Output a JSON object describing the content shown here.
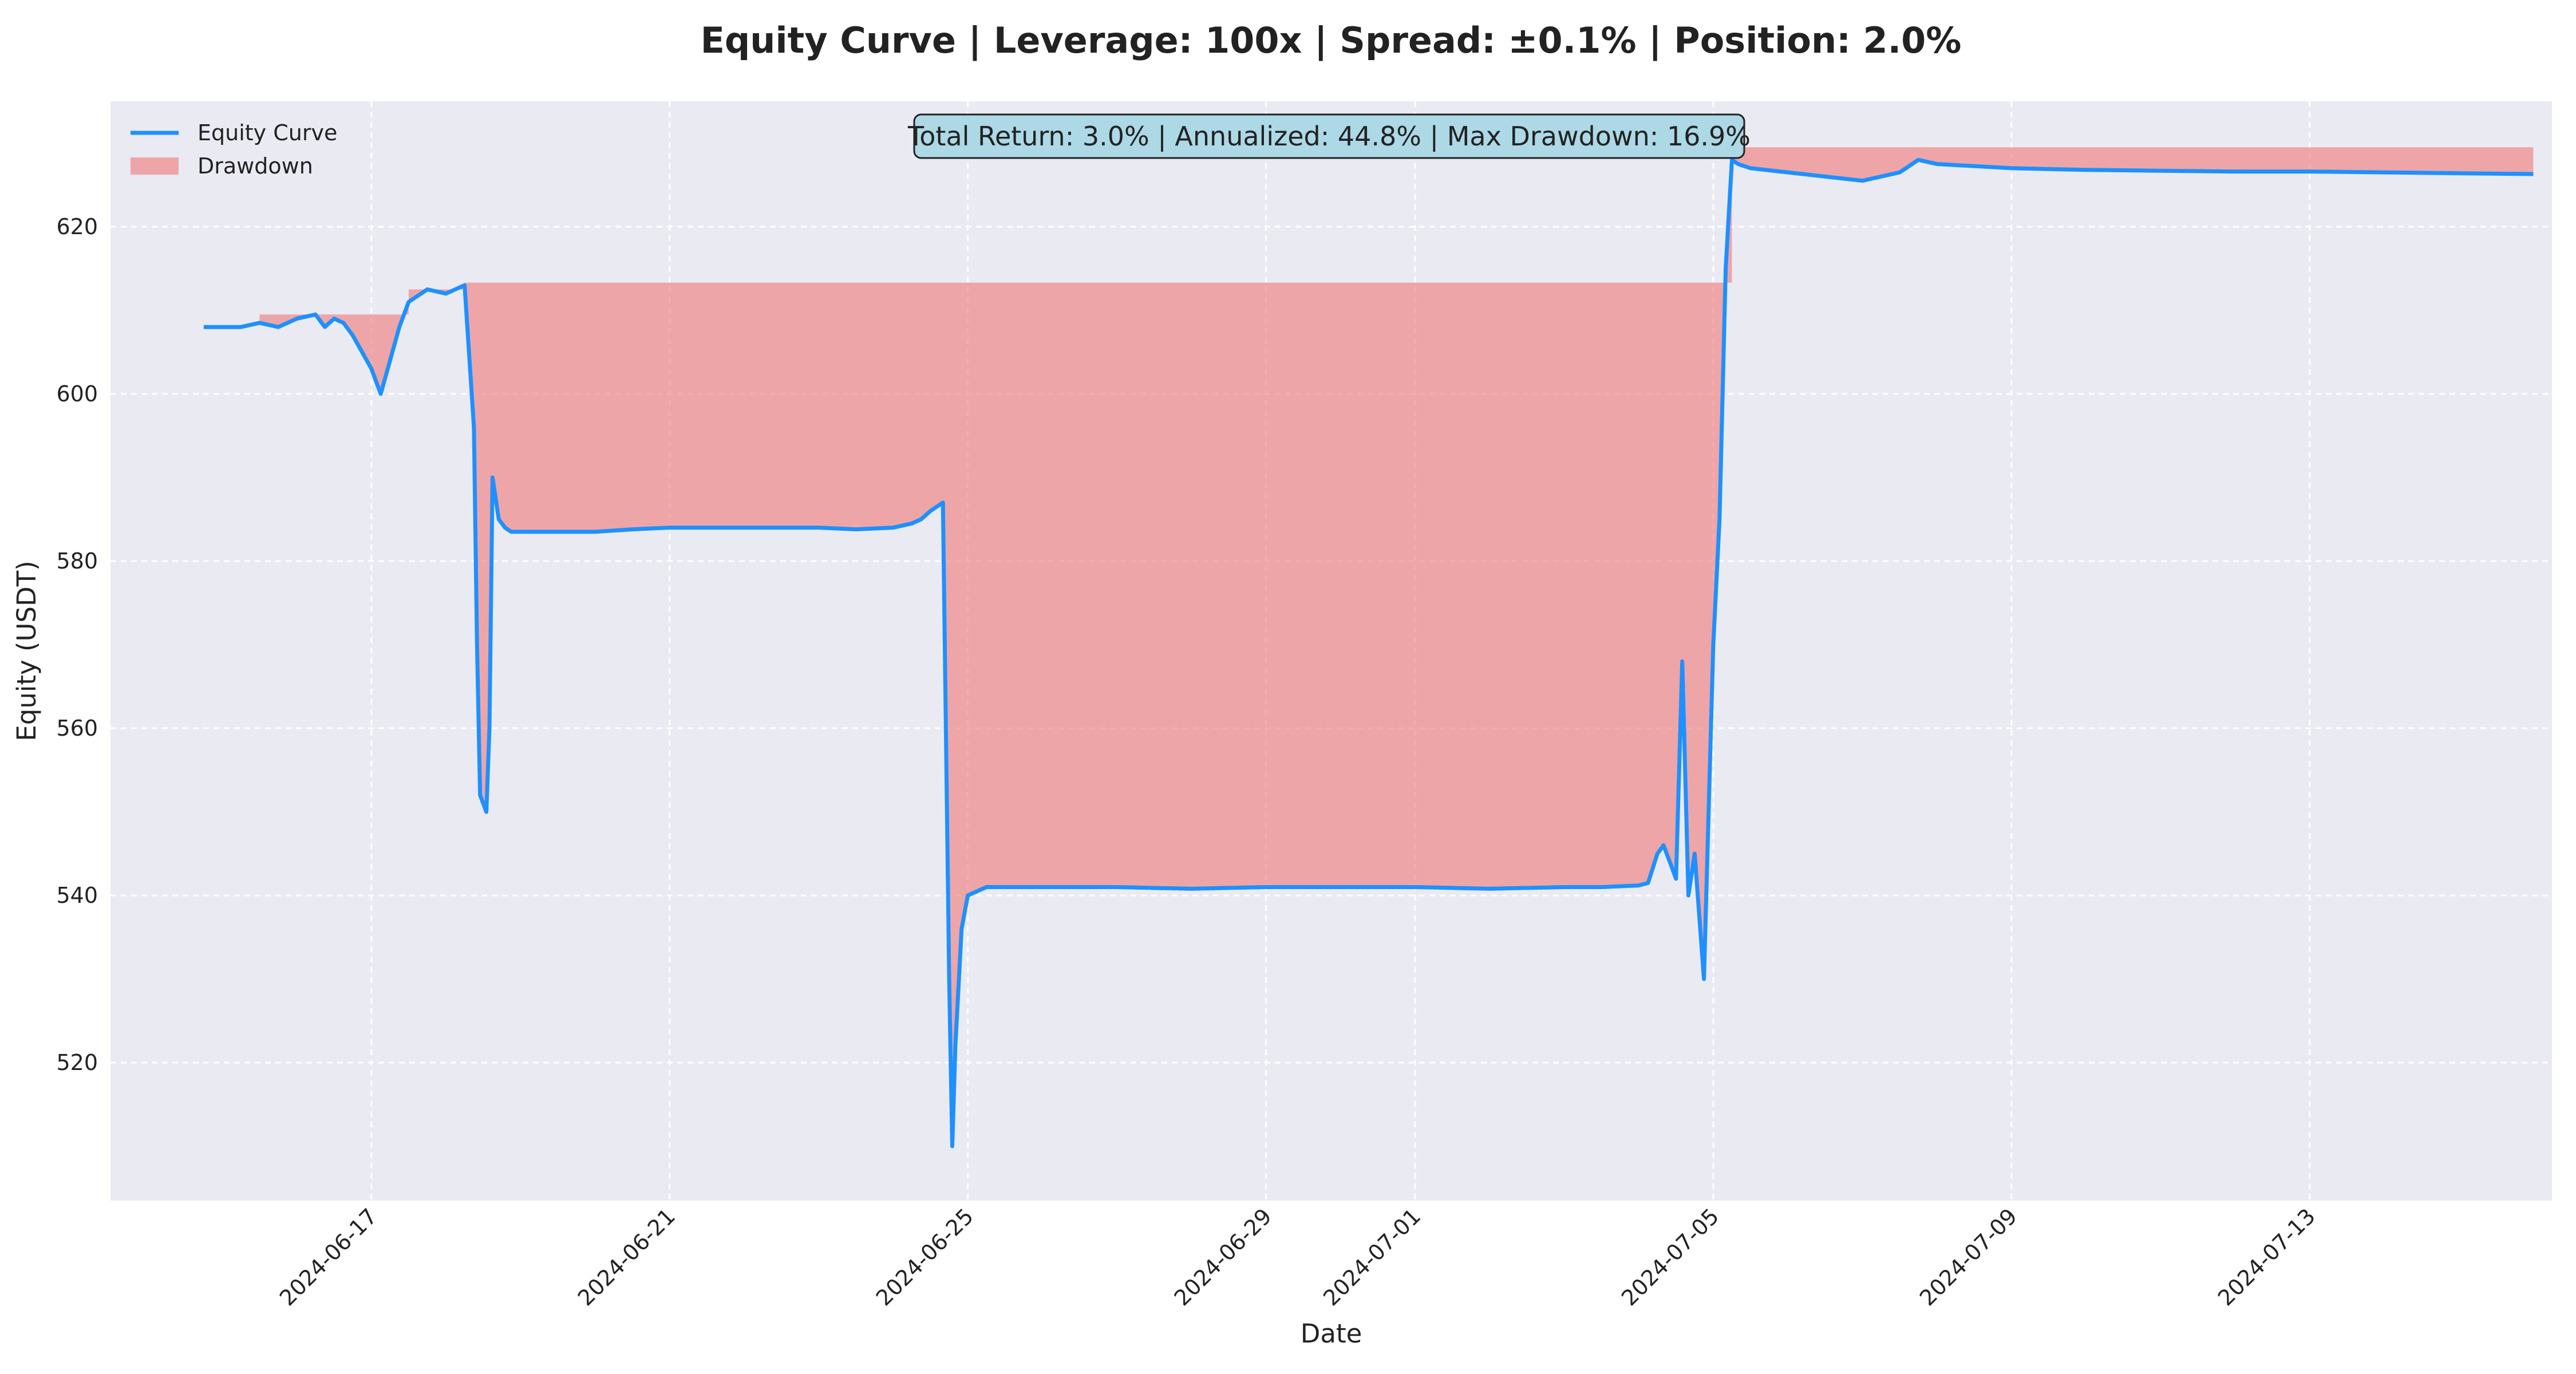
{
  "chart_data": {
    "type": "line",
    "title": "Equity Curve | Leverage: 100x | Spread: ±0.1% | Position: 2.0%",
    "xlabel": "Date",
    "ylabel": "Equity (USDT)",
    "x_ticks": [
      "2024-06-17",
      "2024-06-21",
      "2024-06-25",
      "2024-06-29",
      "2024-07-01",
      "2024-07-05",
      "2024-07-09",
      "2024-07-13"
    ],
    "y_ticks": [
      520,
      540,
      560,
      580,
      600,
      620
    ],
    "xlim": [
      "2024-06-13T12:00",
      "2024-07-16T06:00"
    ],
    "ylim": [
      503.5,
      635
    ],
    "grid": true,
    "legend_position": "top-left",
    "annotation": "Total Return: 3.0% | Annualized: 44.8% | Max Drawdown: 16.9%",
    "colors": {
      "equity": "#1e90ff",
      "drawdown": "#f08080",
      "plot_background": "#eaeaf2",
      "annotation_box": "#add8e6"
    },
    "series": [
      {
        "name": "Equity Curve",
        "style": "line",
        "x": [
          "2024-06-14T18:00",
          "2024-06-15T06:00",
          "2024-06-15T12:00",
          "2024-06-15T18:00",
          "2024-06-16T00:00",
          "2024-06-16T06:00",
          "2024-06-16T09:00",
          "2024-06-16T12:00",
          "2024-06-16T15:00",
          "2024-06-16T18:00",
          "2024-06-16T21:00",
          "2024-06-17T00:00",
          "2024-06-17T03:00",
          "2024-06-17T06:00",
          "2024-06-17T09:00",
          "2024-06-17T12:00",
          "2024-06-17T18:00",
          "2024-06-18T00:00",
          "2024-06-18T06:00",
          "2024-06-18T09:00",
          "2024-06-18T10:00",
          "2024-06-18T11:00",
          "2024-06-18T13:00",
          "2024-06-18T14:00",
          "2024-06-18T15:00",
          "2024-06-18T17:00",
          "2024-06-18T19:00",
          "2024-06-18T21:00",
          "2024-06-19T00:00",
          "2024-06-19T06:00",
          "2024-06-20T00:00",
          "2024-06-20T12:00",
          "2024-06-21T00:00",
          "2024-06-22T00:00",
          "2024-06-23T00:00",
          "2024-06-23T12:00",
          "2024-06-24T00:00",
          "2024-06-24T06:00",
          "2024-06-24T09:00",
          "2024-06-24T12:00",
          "2024-06-24T14:00",
          "2024-06-24T16:00",
          "2024-06-24T18:00",
          "2024-06-24T19:00",
          "2024-06-24T20:00",
          "2024-06-24T22:00",
          "2024-06-25T00:00",
          "2024-06-25T06:00",
          "2024-06-25T12:00",
          "2024-06-26T00:00",
          "2024-06-27T00:00",
          "2024-06-28T00:00",
          "2024-06-29T00:00",
          "2024-06-30T00:00",
          "2024-07-01T00:00",
          "2024-07-02T00:00",
          "2024-07-03T00:00",
          "2024-07-03T12:00",
          "2024-07-04T00:00",
          "2024-07-04T03:00",
          "2024-07-04T06:00",
          "2024-07-04T08:00",
          "2024-07-04T10:00",
          "2024-07-04T12:00",
          "2024-07-04T14:00",
          "2024-07-04T16:00",
          "2024-07-04T18:00",
          "2024-07-04T21:00",
          "2024-07-05T00:00",
          "2024-07-05T02:00",
          "2024-07-05T04:00",
          "2024-07-05T06:00",
          "2024-07-05T08:00",
          "2024-07-05T12:00",
          "2024-07-06T00:00",
          "2024-07-06T12:00",
          "2024-07-07T00:00",
          "2024-07-07T12:00",
          "2024-07-07T18:00",
          "2024-07-08T00:00",
          "2024-07-09T00:00",
          "2024-07-10T00:00",
          "2024-07-11T00:00",
          "2024-07-12T00:00",
          "2024-07-13T00:00",
          "2024-07-14T00:00",
          "2024-07-15T00:00",
          "2024-07-16T00:00"
        ],
        "y": [
          608,
          608,
          608.5,
          608,
          609,
          609.5,
          608,
          609,
          608.5,
          607,
          605,
          603,
          600,
          604,
          608,
          611,
          612.5,
          612,
          613,
          596,
          570,
          552,
          550,
          560,
          590,
          585,
          584,
          583.5,
          583.5,
          583.5,
          583.5,
          583.8,
          584,
          584,
          584,
          583.8,
          584,
          584.5,
          585,
          586,
          586.5,
          587,
          530,
          510,
          522,
          536,
          540,
          541,
          541,
          541,
          541,
          540.8,
          541,
          541,
          541,
          540.8,
          541,
          541,
          541.2,
          541.5,
          545,
          546,
          544,
          542,
          568,
          540,
          545,
          530,
          570,
          585,
          615,
          628,
          627.5,
          627,
          626.5,
          626,
          625.5,
          626.5,
          628,
          627.5,
          627,
          626.8,
          626.7,
          626.6,
          626.6,
          626.5,
          626.4,
          626.3
        ]
      },
      {
        "name": "Drawdown",
        "style": "fill",
        "x": [
          "2024-06-15T12:00",
          "2024-06-17T12:00",
          "2024-06-17T12:00",
          "2024-06-18T06:00",
          "2024-06-18T06:00",
          "2024-07-05T06:00",
          "2024-07-05T06:00",
          "2024-07-16T00:00"
        ],
        "y": [
          609.5,
          609.5,
          612.5,
          612.5,
          613.3,
          613.3,
          629.5,
          629.5
        ]
      }
    ]
  }
}
